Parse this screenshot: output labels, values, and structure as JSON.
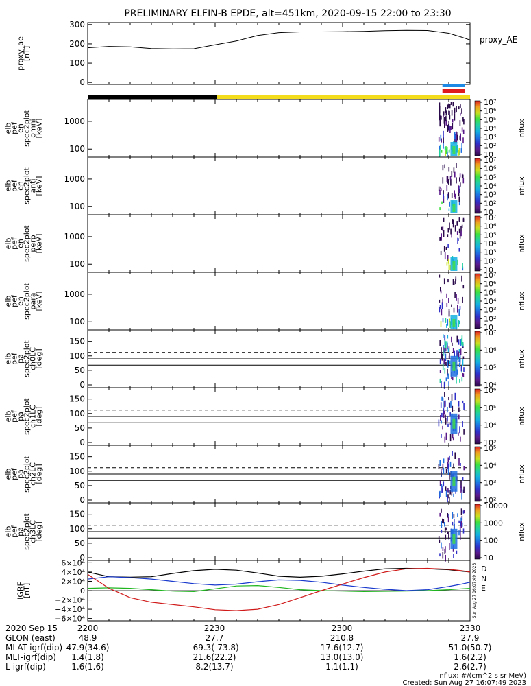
{
  "title": "PRELIMINARY ELFIN-B EPDE, alt=451km, 2020-09-15 22:00 to 23:30",
  "colors": {
    "axis": "#000000",
    "night_bar": "#000000",
    "day_bar": "#f2dc1c",
    "science_bar_blue": "#1e88e5",
    "science_bar_red": "#e01b1b",
    "grf_bx": "#000000",
    "grf_by": "#1a3acd",
    "grf_bz": "#1fb51f",
    "grf_bt": "#d01a1a"
  },
  "chart_data": [
    {
      "id": "proxy_ae",
      "type": "line",
      "ylabel": [
        "proxy_ae",
        "[nT]"
      ],
      "right_label": "proxy_AE",
      "ylim": [
        -10,
        310
      ],
      "yticks": [
        "0",
        "100",
        "200",
        "300"
      ],
      "x": [
        0,
        5,
        10,
        15,
        20,
        25,
        30,
        35,
        40,
        45,
        50,
        55,
        60,
        65,
        70,
        75,
        80,
        85,
        88,
        90
      ],
      "values": [
        180,
        187,
        185,
        176,
        174,
        175,
        195,
        215,
        243,
        258,
        262,
        262,
        263,
        265,
        268,
        270,
        269,
        255,
        235,
        220
      ]
    },
    {
      "id": "orbit_bar",
      "type": "bar",
      "segments": [
        {
          "state": "night",
          "x": [
            0,
            30.5
          ]
        },
        {
          "state": "sunlight",
          "x": [
            30.5,
            90
          ]
        }
      ],
      "science_zone_x": [
        83.5,
        90
      ]
    },
    {
      "id": "pef_en_omni",
      "type": "heatmap",
      "ylabel": [
        "elb",
        "pef",
        "en",
        "spec2plot",
        "omni",
        "[keV]"
      ],
      "yticks": [
        "100",
        "1000"
      ],
      "colorbar_ticks": [
        "10",
        "10²",
        "10³",
        "10⁴",
        "10⁵",
        "10⁶",
        "10⁷"
      ],
      "colorbar_label": "nflux"
    },
    {
      "id": "pef_en_anti",
      "type": "heatmap",
      "ylabel": [
        "elb",
        "pef",
        "en",
        "spec2plot",
        "anti",
        "[keV]"
      ],
      "yticks": [
        "100",
        "1000"
      ],
      "colorbar_ticks": [
        "10",
        "10²",
        "10³",
        "10⁴",
        "10⁵",
        "10⁶",
        "10⁷"
      ],
      "colorbar_label": "nflux"
    },
    {
      "id": "pef_en_perp",
      "type": "heatmap",
      "ylabel": [
        "elb",
        "pef",
        "en",
        "spec2plot",
        "perp",
        "[keV]"
      ],
      "yticks": [
        "100",
        "1000"
      ],
      "colorbar_ticks": [
        "10",
        "10²",
        "10³",
        "10⁴",
        "10⁵",
        "10⁶",
        "10⁷"
      ],
      "colorbar_label": "nflux"
    },
    {
      "id": "pef_en_para",
      "type": "heatmap",
      "ylabel": [
        "elb",
        "pef",
        "en",
        "spec2plot",
        "para",
        "[keV]"
      ],
      "yticks": [
        "100",
        "1000"
      ],
      "colorbar_ticks": [
        "10",
        "10²",
        "10³",
        "10⁴",
        "10⁵",
        "10⁶",
        "10⁷"
      ],
      "colorbar_label": "nflux"
    },
    {
      "id": "pef_pa_ch0",
      "type": "heatmap",
      "ylabel": [
        "elb",
        "pef",
        "pa",
        "spec2plot",
        "ch0LC",
        "[deg]"
      ],
      "yticks": [
        "0",
        "50",
        "100",
        "150"
      ],
      "colorbar_ticks": [
        "10⁴",
        "10⁵",
        "10⁶",
        "10⁷"
      ],
      "colorbar_label": "nflux",
      "loss_cone_dashed": 112,
      "loss_cone_solid": [
        68,
        90
      ]
    },
    {
      "id": "pef_pa_ch1",
      "type": "heatmap",
      "ylabel": [
        "elb",
        "pef",
        "pa",
        "spec2plot",
        "ch1LC",
        "[deg]"
      ],
      "yticks": [
        "0",
        "50",
        "100",
        "150"
      ],
      "colorbar_ticks": [
        "10³",
        "10⁴",
        "10⁵",
        "10⁶"
      ],
      "colorbar_label": "nflux",
      "loss_cone_dashed": 112,
      "loss_cone_solid": [
        68,
        90
      ]
    },
    {
      "id": "pef_pa_ch2",
      "type": "heatmap",
      "ylabel": [
        "elb",
        "pef",
        "pa",
        "spec2plot",
        "ch2LC",
        "[deg]"
      ],
      "yticks": [
        "0",
        "50",
        "100",
        "150"
      ],
      "colorbar_ticks": [
        "10²",
        "10³",
        "10⁴",
        "10⁵"
      ],
      "colorbar_label": "nflux",
      "loss_cone_dashed": 112,
      "loss_cone_solid": [
        68,
        90
      ]
    },
    {
      "id": "pef_pa_ch3",
      "type": "heatmap",
      "ylabel": [
        "elb",
        "pef",
        "pa",
        "spec2plot",
        "ch3LC",
        "[deg]"
      ],
      "yticks": [
        "0",
        "50",
        "100",
        "150"
      ],
      "colorbar_ticks": [
        "10",
        "100",
        "1000",
        "10000"
      ],
      "colorbar_label": "nflux",
      "loss_cone_dashed": 112,
      "loss_cone_solid": [
        68,
        90
      ]
    },
    {
      "id": "igrf",
      "type": "line",
      "ylabel": [
        "IGRF",
        "[nT]"
      ],
      "ylim": [
        -65000,
        65000
      ],
      "yticks": [
        "−6×10⁴",
        "−4×10⁴",
        "−2×10⁴",
        "0",
        "2×10⁴",
        "4×10⁴",
        "6×10⁴"
      ],
      "right_labels": [
        "D",
        "N",
        "E"
      ],
      "timestamp": "Sun Aug 27 16:07:49 2023",
      "x": [
        0,
        5,
        10,
        15,
        20,
        25,
        30,
        35,
        40,
        45,
        50,
        55,
        60,
        65,
        70,
        75,
        80,
        85,
        88,
        90
      ],
      "series": [
        {
          "key": "bx",
          "values": [
            40000,
            30000,
            29000,
            30000,
            37000,
            43000,
            46000,
            44000,
            38000,
            31000,
            29000,
            31000,
            36000,
            42000,
            47000,
            48000,
            47000,
            45000,
            42000,
            40000
          ]
        },
        {
          "key": "by",
          "values": [
            25000,
            30000,
            28000,
            25000,
            20000,
            15000,
            12000,
            14000,
            19000,
            23000,
            22000,
            18000,
            12000,
            7000,
            3000,
            0,
            2000,
            9000,
            14000,
            18000
          ]
        },
        {
          "key": "bz",
          "values": [
            5000,
            6000,
            5000,
            2000,
            -1000,
            -2000,
            4000,
            10000,
            11000,
            7000,
            2000,
            0,
            -1000,
            -2000,
            -1500,
            -1000,
            0,
            2000,
            4000,
            5000
          ]
        },
        {
          "key": "bt",
          "values": [
            35000,
            5000,
            -15000,
            -25000,
            -30000,
            -35000,
            -41000,
            -43000,
            -40000,
            -30000,
            -15000,
            0,
            14000,
            28000,
            40000,
            47000,
            48000,
            46000,
            43000,
            40000
          ]
        }
      ]
    }
  ],
  "x_axis": {
    "ticks": [
      "2200",
      "2230",
      "2300",
      "2330"
    ],
    "date_label": "2020 Sep 15",
    "rows": [
      {
        "label": "GLON (east)",
        "values": [
          "48.9",
          "27.7",
          "210.8",
          "27.9"
        ]
      },
      {
        "label": "MLAT-igrf(dip)",
        "values": [
          "47.9(34.6)",
          "-69.3(-73.8)",
          "17.6(12.7)",
          "51.0(50.7)"
        ]
      },
      {
        "label": "MLT-igrf(dip)",
        "values": [
          "1.4(1.8)",
          "21.6(22.2)",
          "13.0(13.0)",
          "1.6(2.2)"
        ]
      },
      {
        "label": "L-igrf(dip)",
        "values": [
          "1.6(1.6)",
          "8.2(13.7)",
          "1.1(1.1)",
          "2.6(2.7)"
        ]
      }
    ]
  },
  "footer": {
    "units": "nflux: #/(cm^2 s sr MeV)",
    "created": "Created: Sun Aug 27 16:07:49 2023"
  }
}
